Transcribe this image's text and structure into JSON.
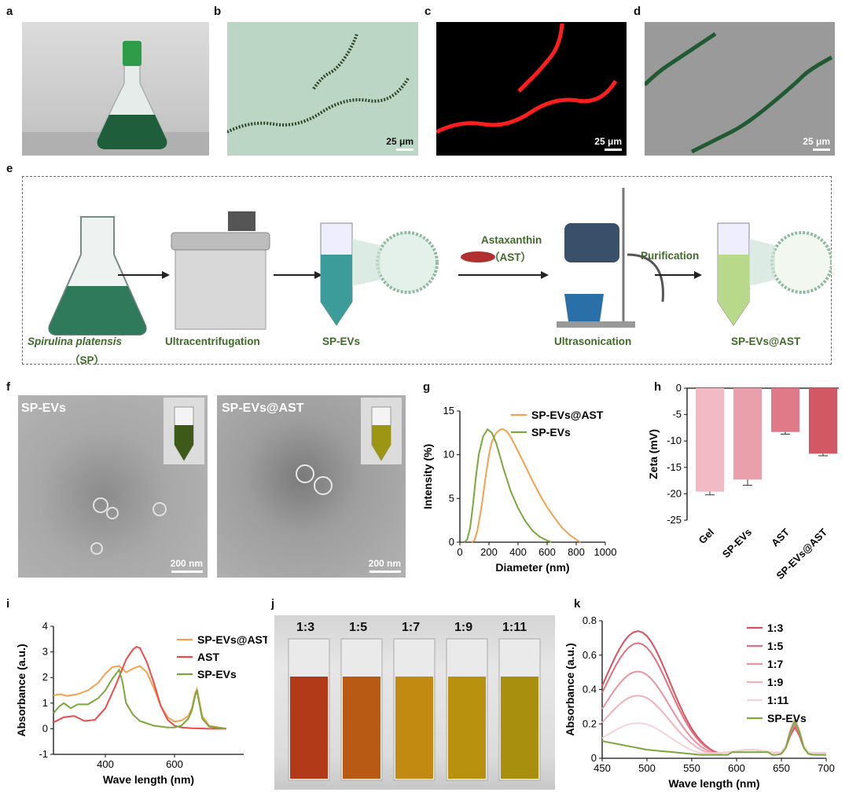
{
  "panels": [
    "a",
    "b",
    "c",
    "d",
    "e",
    "f",
    "g",
    "h",
    "i",
    "j",
    "k"
  ],
  "scale_bars": {
    "micro": "25 μm",
    "tem": "200 nm"
  },
  "process": {
    "steps": [
      "Spirulina platensis",
      "（SP）",
      "Ultracentrifugation",
      "SP-EVs",
      "Ultrasonication",
      "SP-EVs@AST"
    ],
    "reagent": "Astaxanthin",
    "reagent_abbr": "（AST）",
    "purification": "Purification"
  },
  "tem": {
    "left": "SP-EVs",
    "right": "SP-EVs@AST"
  },
  "cuvettes": [
    "1:3",
    "1:5",
    "1:7",
    "1:9",
    "1:11"
  ],
  "colors": {
    "sp_evs_ast": "#f5a04a",
    "sp_evs": "#7aa83a",
    "ast": "#ef4a4a",
    "process_text": "#3f6a2a"
  },
  "chart_data": [
    {
      "panel": "g",
      "type": "line",
      "xlabel": "Diameter (nm)",
      "ylabel": "Intensity (%)",
      "xlim": [
        0,
        1000
      ],
      "ylim": [
        0,
        15
      ],
      "xticks": [
        0,
        200,
        400,
        600,
        800,
        1000
      ],
      "yticks": [
        0,
        5,
        10,
        15
      ],
      "legend": "top-right",
      "series": [
        {
          "name": "SP-EVs@AST",
          "color": "#f5a04a",
          "x": [
            80,
            100,
            120,
            150,
            180,
            200,
            220,
            250,
            280,
            300,
            320,
            350,
            400,
            450,
            500,
            550,
            600,
            650,
            700,
            750,
            800,
            830
          ],
          "y": [
            0,
            0.2,
            1.3,
            4.2,
            7.8,
            10.0,
            11.5,
            12.5,
            12.9,
            12.9,
            12.7,
            12.0,
            10.4,
            8.7,
            7.0,
            5.4,
            4.0,
            2.8,
            1.7,
            0.9,
            0.3,
            0
          ]
        },
        {
          "name": "SP-EVs",
          "color": "#7aa83a",
          "x": [
            30,
            50,
            70,
            90,
            110,
            130,
            160,
            190,
            220,
            250,
            280,
            300,
            350,
            400,
            450,
            500,
            550,
            600,
            630
          ],
          "y": [
            0,
            0.3,
            1.6,
            4.3,
            7.4,
            10.0,
            12.1,
            12.9,
            12.5,
            11.3,
            9.6,
            8.4,
            5.8,
            3.9,
            2.4,
            1.3,
            0.6,
            0.2,
            0
          ]
        }
      ]
    },
    {
      "panel": "h",
      "type": "bar",
      "ylabel": "Zeta (mV)",
      "ylim": [
        -25,
        0
      ],
      "yticks": [
        0,
        -5,
        -10,
        -15,
        -20,
        -25
      ],
      "categories": [
        "Gel",
        "SP-EVs",
        "AST",
        "SP-EVs@AST"
      ],
      "values": [
        -19.6,
        -17.3,
        -8.3,
        -12.4
      ],
      "errors": [
        0.6,
        1.1,
        0.4,
        0.4
      ],
      "colors": [
        "#f2bac4",
        "#eaa0ab",
        "#e07a88",
        "#d25866"
      ]
    },
    {
      "panel": "i",
      "type": "line",
      "xlabel": "Wave length (nm)",
      "ylabel": "Absorbance (a.u.)",
      "xlim": [
        250,
        800
      ],
      "ylim": [
        -1,
        4
      ],
      "xticks": [
        400,
        600
      ],
      "yticks": [
        -1,
        0,
        1,
        2,
        3,
        4
      ],
      "legend": "top-right",
      "series": [
        {
          "name": "SP-EVs@AST",
          "color": "#f5a04a",
          "x": [
            250,
            270,
            290,
            320,
            350,
            380,
            400,
            420,
            440,
            460,
            480,
            500,
            520,
            540,
            560,
            580,
            600,
            620,
            640,
            650,
            660,
            665,
            670,
            680,
            700,
            750
          ],
          "y": [
            1.3,
            1.35,
            1.28,
            1.35,
            1.5,
            1.8,
            2.15,
            2.4,
            2.45,
            2.2,
            2.35,
            2.45,
            2.2,
            1.6,
            0.9,
            0.45,
            0.28,
            0.32,
            0.5,
            0.8,
            1.4,
            1.55,
            1.2,
            0.5,
            0.12,
            0
          ]
        },
        {
          "name": "AST",
          "color": "#ef4a4a",
          "x": [
            250,
            280,
            310,
            340,
            370,
            400,
            430,
            460,
            480,
            490,
            500,
            520,
            540,
            560,
            580,
            600,
            620,
            650,
            700,
            750
          ],
          "y": [
            0.25,
            0.45,
            0.5,
            0.3,
            0.35,
            0.8,
            1.7,
            2.7,
            3.1,
            3.2,
            3.15,
            2.6,
            1.8,
            0.9,
            0.35,
            0.12,
            0.05,
            0.02,
            0,
            0
          ]
        },
        {
          "name": "SP-EVs",
          "color": "#7aa83a",
          "x": [
            250,
            265,
            280,
            300,
            320,
            350,
            380,
            400,
            420,
            440,
            450,
            460,
            480,
            500,
            540,
            580,
            600,
            620,
            640,
            650,
            660,
            665,
            670,
            680,
            700,
            750
          ],
          "y": [
            0.6,
            0.85,
            1.0,
            0.8,
            0.95,
            0.95,
            1.2,
            1.5,
            1.95,
            2.3,
            1.8,
            1.0,
            0.55,
            0.3,
            0.12,
            0.05,
            0.05,
            0.12,
            0.4,
            0.7,
            1.3,
            1.5,
            1.1,
            0.4,
            0.08,
            0
          ]
        }
      ]
    },
    {
      "panel": "k",
      "type": "line",
      "xlabel": "Wave length (nm)",
      "ylabel": "Absorbance (a.u.)",
      "xlim": [
        450,
        700
      ],
      "ylim": [
        0,
        0.8
      ],
      "xticks": [
        450,
        500,
        550,
        600,
        650,
        700
      ],
      "yticks": [
        0.0,
        0.2,
        0.4,
        0.6,
        0.8
      ],
      "legend": "top-right",
      "series": [
        {
          "name": "1:3",
          "color": "#d8505e",
          "peak": 0.74,
          "start": 0.54,
          "p665": 0.15
        },
        {
          "name": "1:5",
          "color": "#e07080",
          "peak": 0.67,
          "start": 0.51,
          "p665": 0.165
        },
        {
          "name": "1:7",
          "color": "#ea93a0",
          "peak": 0.505,
          "start": 0.41,
          "p665": 0.18
        },
        {
          "name": "1:9",
          "color": "#f0b1bb",
          "peak": 0.365,
          "start": 0.3,
          "p665": 0.195
        },
        {
          "name": "1:11",
          "color": "#f6d2d8",
          "peak": 0.205,
          "start": 0.19,
          "p665": 0.21
        },
        {
          "name": "SP-EVs",
          "color": "#7aa83a",
          "peak": 0.05,
          "start": 0.1,
          "p665": 0.2
        }
      ]
    }
  ]
}
